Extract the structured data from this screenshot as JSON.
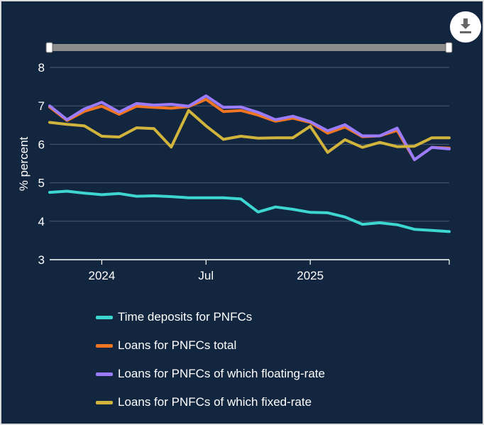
{
  "download_button": {
    "icon": "download-icon"
  },
  "chart_data": {
    "type": "line",
    "ylabel": "% percent",
    "ylim": [
      3,
      8
    ],
    "yticks": [
      3,
      4,
      5,
      6,
      7,
      8
    ],
    "ytick_labels": [
      "3",
      "4",
      "5",
      "6",
      "7",
      "8"
    ],
    "x": [
      "2023-10",
      "2023-11",
      "2023-12",
      "2024-01",
      "2024-02",
      "2024-03",
      "2024-04",
      "2024-05",
      "2024-06",
      "2024-07",
      "2024-08",
      "2024-09",
      "2024-10",
      "2024-11",
      "2024-12",
      "2025-01",
      "2025-02",
      "2025-03",
      "2025-04",
      "2025-05",
      "2025-06",
      "2025-07",
      "2025-08",
      "2025-09"
    ],
    "xticks": [
      {
        "x": "2024-01",
        "label": "2024"
      },
      {
        "x": "2024-07",
        "label": "Jul"
      },
      {
        "x": "2025-01",
        "label": "2025"
      }
    ],
    "xlim": [
      "2023-10",
      "2025-09"
    ],
    "grid": true,
    "legend_position": "bottom",
    "series": [
      {
        "name": "Time deposits for PNFCs",
        "color": "#3dd6d0",
        "values": [
          4.75,
          4.78,
          4.73,
          4.69,
          4.72,
          4.65,
          4.66,
          4.64,
          4.61,
          4.61,
          4.61,
          4.58,
          4.24,
          4.37,
          4.31,
          4.23,
          4.22,
          4.11,
          3.92,
          3.96,
          3.91,
          3.79,
          3.76,
          3.73
        ]
      },
      {
        "name": "Loans for PNFCs total",
        "color": "#f07622",
        "values": [
          6.97,
          6.62,
          6.86,
          6.99,
          6.78,
          6.99,
          6.96,
          6.94,
          6.98,
          7.17,
          6.85,
          6.88,
          6.76,
          6.6,
          6.68,
          6.57,
          6.29,
          6.45,
          6.2,
          6.22,
          6.36,
          5.6,
          5.92,
          5.9
        ]
      },
      {
        "name": "Loans for PNFCs of which floating-rate",
        "color": "#9b7bff",
        "values": [
          7.0,
          6.64,
          6.92,
          7.09,
          6.84,
          7.06,
          7.02,
          7.04,
          6.99,
          7.26,
          6.96,
          6.97,
          6.83,
          6.64,
          6.73,
          6.59,
          6.35,
          6.51,
          6.22,
          6.22,
          6.42,
          5.6,
          5.92,
          5.88
        ]
      },
      {
        "name": "Loans for PNFCs of which fixed-rate",
        "color": "#d1b43c",
        "values": [
          6.57,
          6.52,
          6.48,
          6.21,
          6.19,
          6.43,
          6.41,
          5.93,
          6.88,
          6.48,
          6.13,
          6.21,
          6.16,
          6.17,
          6.17,
          6.47,
          5.79,
          6.12,
          5.92,
          6.05,
          5.94,
          5.95,
          6.17,
          6.17
        ]
      }
    ]
  }
}
